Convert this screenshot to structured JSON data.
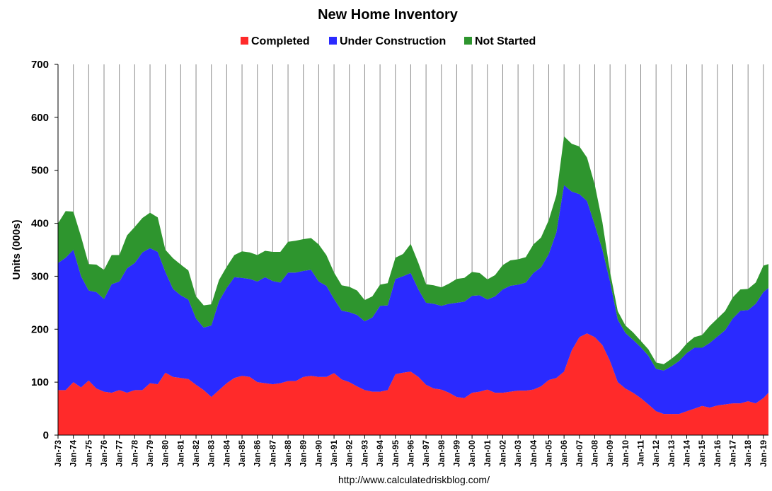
{
  "chart_data": {
    "type": "area",
    "stacked": true,
    "title": "New Home Inventory",
    "ylabel": "Units (000s)",
    "xlabel": "",
    "ylim": [
      0,
      700
    ],
    "yticks": [
      0,
      100,
      200,
      300,
      400,
      500,
      600,
      700
    ],
    "grid": "vertical",
    "legend_position": "top",
    "source_text": "http://www.calculatedriskblog.com/",
    "x_ticks": [
      "Jan-73",
      "Jan-74",
      "Jan-75",
      "Jan-76",
      "Jan-77",
      "Jan-78",
      "Jan-79",
      "Jan-80",
      "Jan-81",
      "Jan-82",
      "Jan-83",
      "Jan-84",
      "Jan-85",
      "Jan-86",
      "Jan-87",
      "Jan-88",
      "Jan-89",
      "Jan-90",
      "Jan-91",
      "Jan-92",
      "Jan-93",
      "Jan-94",
      "Jan-95",
      "Jan-96",
      "Jan-97",
      "Jan-98",
      "Jan-99",
      "Jan-00",
      "Jan-01",
      "Jan-02",
      "Jan-03",
      "Jan-04",
      "Jan-05",
      "Jan-06",
      "Jan-07",
      "Jan-08",
      "Jan-09",
      "Jan-10",
      "Jan-11",
      "Jan-12",
      "Jan-13",
      "Jan-14",
      "Jan-15",
      "Jan-16",
      "Jan-17",
      "Jan-18",
      "Jan-19"
    ],
    "x_range": [
      1973.0,
      2019.33
    ],
    "x": [
      1973.0,
      1973.5,
      1974.0,
      1974.5,
      1975.0,
      1975.5,
      1976.0,
      1976.5,
      1977.0,
      1977.5,
      1978.0,
      1978.5,
      1979.0,
      1979.5,
      1980.0,
      1980.5,
      1981.0,
      1981.5,
      1982.0,
      1982.5,
      1983.0,
      1983.5,
      1984.0,
      1984.5,
      1985.0,
      1985.5,
      1986.0,
      1986.5,
      1987.0,
      1987.5,
      1988.0,
      1988.5,
      1989.0,
      1989.5,
      1990.0,
      1990.5,
      1991.0,
      1991.5,
      1992.0,
      1992.5,
      1993.0,
      1993.5,
      1994.0,
      1994.5,
      1995.0,
      1995.5,
      1996.0,
      1996.5,
      1997.0,
      1997.5,
      1998.0,
      1998.5,
      1999.0,
      1999.5,
      2000.0,
      2000.5,
      2001.0,
      2001.5,
      2002.0,
      2002.5,
      2003.0,
      2003.5,
      2004.0,
      2004.5,
      2005.0,
      2005.5,
      2006.0,
      2006.5,
      2007.0,
      2007.5,
      2008.0,
      2008.5,
      2009.0,
      2009.5,
      2010.0,
      2010.5,
      2011.0,
      2011.5,
      2012.0,
      2012.5,
      2013.0,
      2013.5,
      2014.0,
      2014.5,
      2015.0,
      2015.5,
      2016.0,
      2016.5,
      2017.0,
      2017.5,
      2018.0,
      2018.5,
      2019.0,
      2019.33
    ],
    "series": [
      {
        "name": "Completed",
        "color": "#ff2a2a",
        "values": [
          85,
          85,
          100,
          90,
          103,
          88,
          82,
          80,
          85,
          80,
          85,
          85,
          98,
          96,
          118,
          110,
          108,
          106,
          95,
          85,
          72,
          85,
          98,
          108,
          112,
          110,
          100,
          98,
          96,
          98,
          102,
          102,
          110,
          112,
          110,
          110,
          117,
          105,
          100,
          92,
          85,
          82,
          82,
          85,
          115,
          118,
          120,
          110,
          95,
          88,
          86,
          80,
          72,
          70,
          80,
          82,
          86,
          80,
          80,
          82,
          84,
          84,
          86,
          92,
          104,
          108,
          120,
          160,
          185,
          192,
          185,
          170,
          140,
          100,
          88,
          80,
          70,
          58,
          45,
          40,
          40,
          40,
          45,
          50,
          55,
          52,
          56,
          58,
          60,
          60,
          64,
          60,
          70,
          80
        ]
      },
      {
        "name": "Under Construction",
        "color": "#2a2aff",
        "values": [
          240,
          250,
          250,
          210,
          170,
          182,
          175,
          205,
          205,
          235,
          240,
          260,
          255,
          250,
          190,
          166,
          156,
          150,
          125,
          118,
          135,
          168,
          180,
          190,
          185,
          185,
          190,
          200,
          195,
          190,
          205,
          205,
          200,
          200,
          180,
          172,
          140,
          130,
          132,
          135,
          130,
          140,
          162,
          160,
          180,
          182,
          186,
          165,
          155,
          160,
          158,
          168,
          178,
          182,
          183,
          182,
          170,
          182,
          195,
          200,
          200,
          204,
          220,
          225,
          238,
          275,
          352,
          300,
          270,
          250,
          212,
          180,
          150,
          118,
          105,
          100,
          96,
          92,
          80,
          82,
          90,
          100,
          110,
          115,
          110,
          122,
          130,
          140,
          160,
          175,
          172,
          188,
          200,
          198
        ]
      },
      {
        "name": "Not Started",
        "color": "#2e952e",
        "values": [
          75,
          88,
          72,
          75,
          50,
          52,
          55,
          55,
          50,
          62,
          68,
          65,
          67,
          65,
          42,
          58,
          58,
          55,
          42,
          42,
          40,
          40,
          40,
          42,
          50,
          50,
          50,
          50,
          55,
          58,
          58,
          60,
          60,
          60,
          70,
          58,
          50,
          48,
          48,
          46,
          40,
          40,
          40,
          42,
          40,
          42,
          55,
          50,
          35,
          35,
          35,
          38,
          45,
          45,
          45,
          42,
          38,
          40,
          46,
          48,
          48,
          48,
          54,
          56,
          64,
          70,
          92,
          90,
          90,
          82,
          76,
          52,
          18,
          16,
          14,
          14,
          12,
          12,
          12,
          12,
          14,
          16,
          18,
          20,
          24,
          32,
          34,
          36,
          40,
          40,
          40,
          40,
          50,
          45
        ]
      }
    ]
  }
}
